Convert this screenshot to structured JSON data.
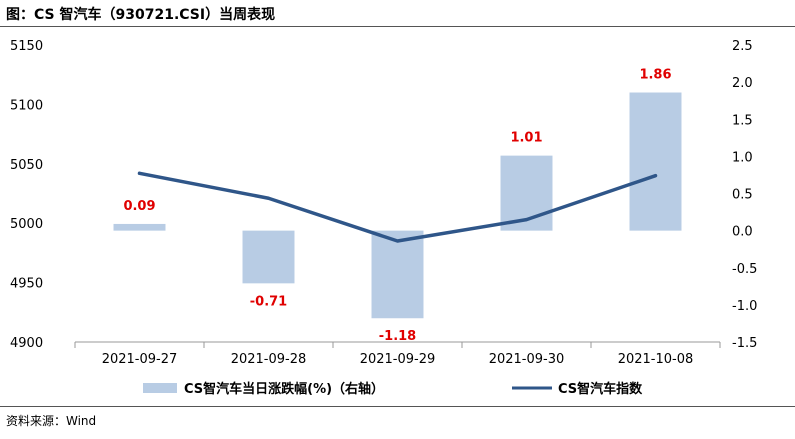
{
  "title": "图：CS 智汽车（930721.CSI）当周表现",
  "source": "资料来源：Wind",
  "chart_data": {
    "type": "bar+line",
    "categories": [
      "2021-09-27",
      "2021-09-28",
      "2021-09-29",
      "2021-09-30",
      "2021-10-08"
    ],
    "series": [
      {
        "name": "CS智汽车当日涨跌幅(%)（右轴）",
        "type": "bar",
        "axis": "right",
        "values": [
          0.09,
          -0.71,
          -1.18,
          1.01,
          1.86
        ],
        "labels": [
          "0.09",
          "-0.71",
          "-1.18",
          "1.01",
          "1.86"
        ],
        "color": "#b8cce4",
        "label_color": "#e00000"
      },
      {
        "name": "CS智汽车指数",
        "type": "line",
        "axis": "left",
        "values": [
          5042,
          5021,
          4985,
          5003,
          5040
        ],
        "color": "#2f5689"
      }
    ],
    "left_axis": {
      "ylim": [
        4900,
        5150
      ],
      "ticks": [
        "4900",
        "4950",
        "5000",
        "5050",
        "5100",
        "5150"
      ]
    },
    "right_axis": {
      "ylim": [
        -1.5,
        2.5
      ],
      "ticks": [
        "-1.5",
        "-1.0",
        "-0.5",
        "0.0",
        "0.5",
        "1.0",
        "1.5",
        "2.0",
        "2.5"
      ]
    },
    "grid": false,
    "legend": "bottom"
  }
}
